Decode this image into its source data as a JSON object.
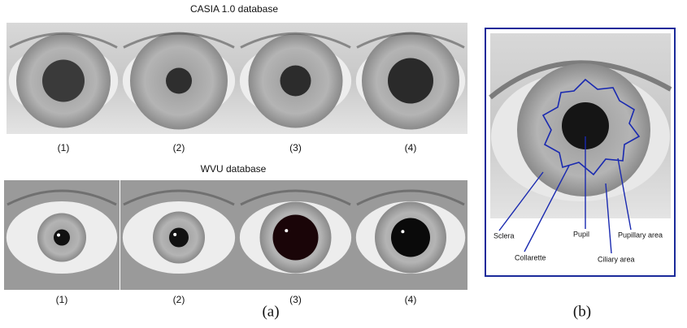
{
  "panel_a": {
    "casia": {
      "title": "CASIA 1.0 database",
      "labels": [
        "(1)",
        "(2)",
        "(3)",
        "(4)"
      ]
    },
    "wvu": {
      "title": "WVU database",
      "labels": [
        "(1)",
        "(2)",
        "(3)",
        "(4)"
      ]
    },
    "caption": "(a)"
  },
  "panel_b": {
    "annotations": [
      "Sclera",
      "Collarette",
      "Pupil",
      "Ciliary area",
      "Pupillary area"
    ],
    "caption": "(b)"
  }
}
